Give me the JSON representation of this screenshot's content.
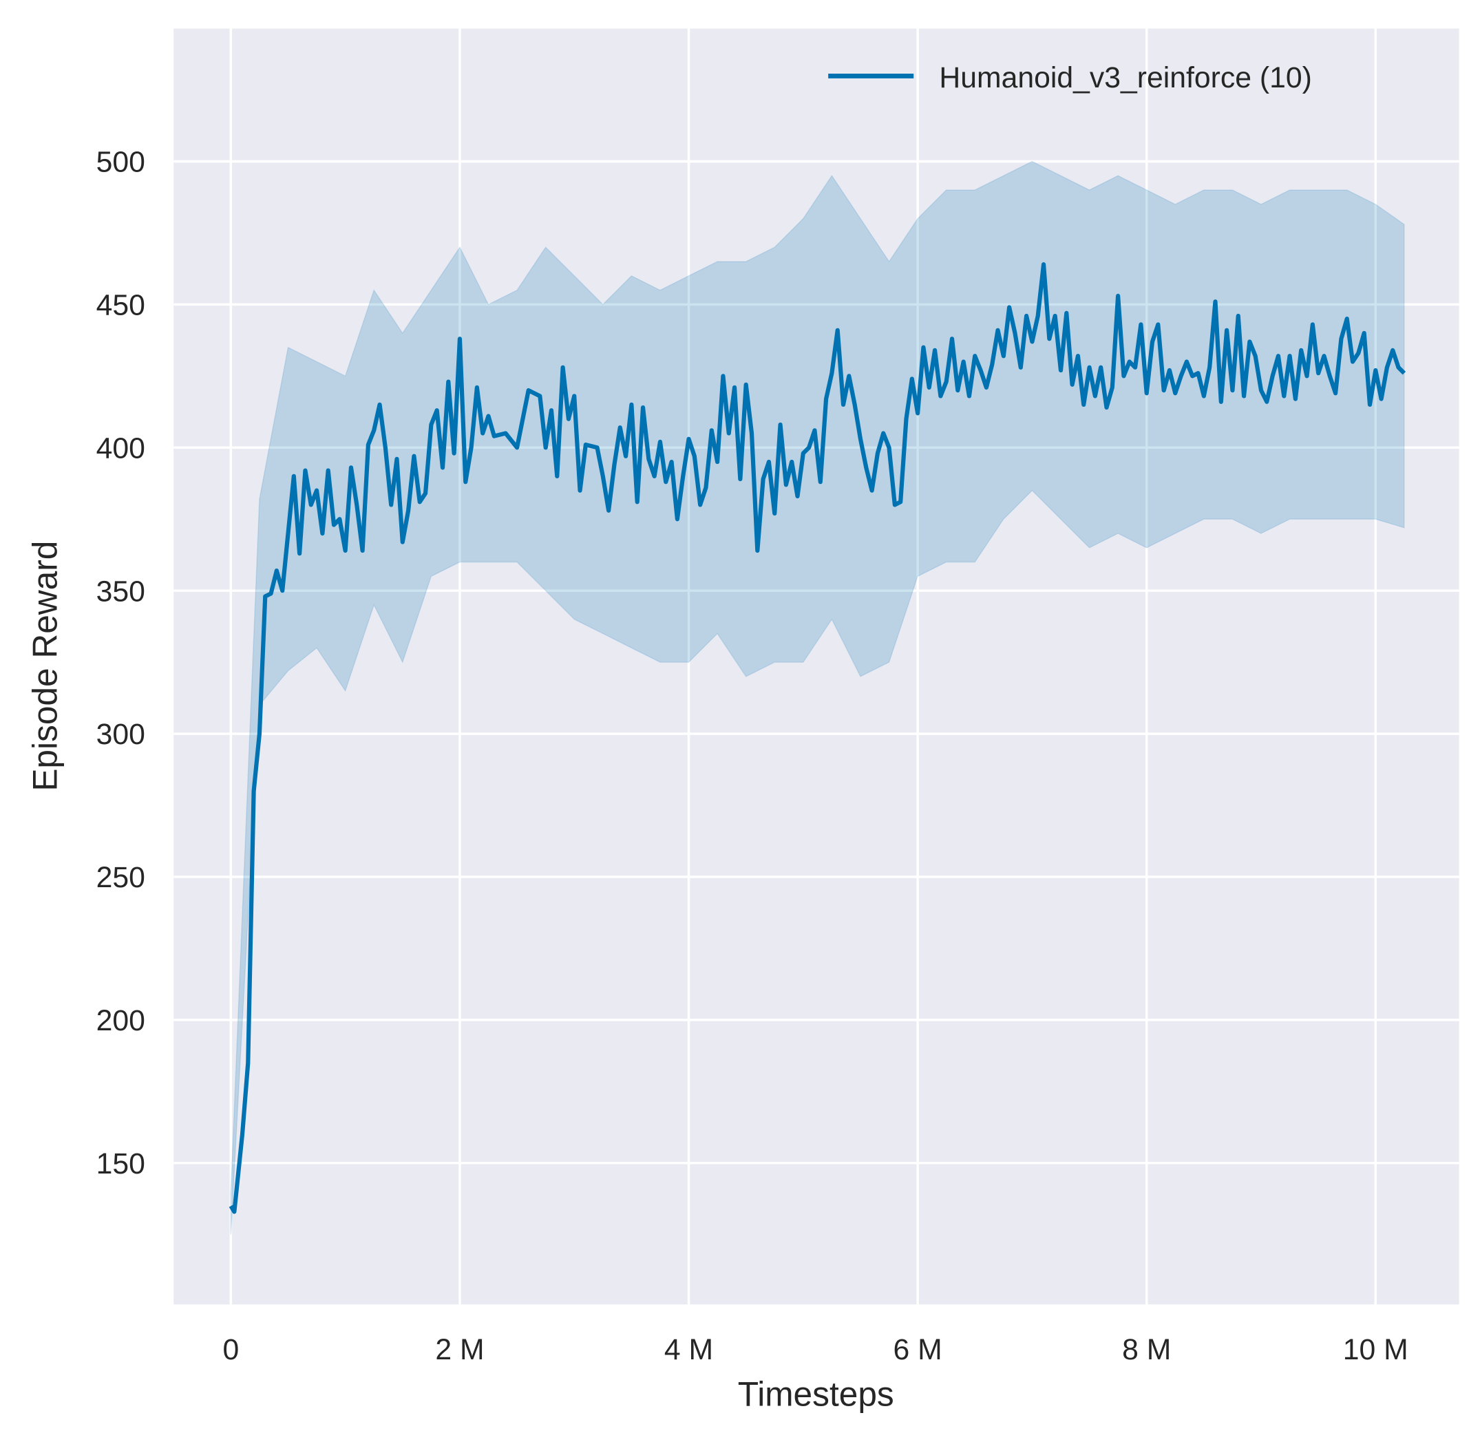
{
  "chart_data": {
    "type": "line",
    "xlabel": "Timesteps",
    "ylabel": "Episode Reward",
    "xlim": [
      -0.5,
      10.73
    ],
    "ylim": [
      100.6,
      546.4
    ],
    "x_unit": "M",
    "xticks": [
      0,
      2,
      4,
      6,
      8,
      10
    ],
    "xtick_labels": [
      "0",
      "2 M",
      "4 M",
      "6 M",
      "8 M",
      "10 M"
    ],
    "yticks": [
      150,
      200,
      250,
      300,
      350,
      400,
      450,
      500
    ],
    "ytick_labels": [
      "150",
      "200",
      "250",
      "300",
      "350",
      "400",
      "450",
      "500"
    ],
    "grid": true,
    "legend_position": "top-right",
    "background_color": "#EAEAF2",
    "series": [
      {
        "name": "Humanoid_v3_reinforce (10)",
        "color": "#0072B2",
        "mean": [
          [
            0,
            135
          ],
          [
            0.03,
            133
          ],
          [
            0.1,
            160
          ],
          [
            0.15,
            185
          ],
          [
            0.2,
            280
          ],
          [
            0.25,
            300
          ],
          [
            0.3,
            348
          ],
          [
            0.35,
            349
          ],
          [
            0.4,
            357
          ],
          [
            0.45,
            350
          ],
          [
            0.5,
            370
          ],
          [
            0.55,
            390
          ],
          [
            0.6,
            363
          ],
          [
            0.65,
            392
          ],
          [
            0.7,
            380
          ],
          [
            0.75,
            385
          ],
          [
            0.8,
            370
          ],
          [
            0.85,
            392
          ],
          [
            0.9,
            373
          ],
          [
            0.95,
            375
          ],
          [
            1.0,
            364
          ],
          [
            1.05,
            393
          ],
          [
            1.1,
            380
          ],
          [
            1.15,
            364
          ],
          [
            1.2,
            401
          ],
          [
            1.25,
            406
          ],
          [
            1.3,
            415
          ],
          [
            1.35,
            400
          ],
          [
            1.4,
            380
          ],
          [
            1.45,
            396
          ],
          [
            1.5,
            367
          ],
          [
            1.55,
            378
          ],
          [
            1.6,
            397
          ],
          [
            1.65,
            381
          ],
          [
            1.7,
            384
          ],
          [
            1.75,
            408
          ],
          [
            1.8,
            413
          ],
          [
            1.85,
            393
          ],
          [
            1.9,
            423
          ],
          [
            1.95,
            398
          ],
          [
            2.0,
            438
          ],
          [
            2.05,
            388
          ],
          [
            2.1,
            400
          ],
          [
            2.15,
            421
          ],
          [
            2.2,
            405
          ],
          [
            2.25,
            411
          ],
          [
            2.3,
            404
          ],
          [
            2.4,
            405
          ],
          [
            2.5,
            400
          ],
          [
            2.6,
            420
          ],
          [
            2.7,
            418
          ],
          [
            2.75,
            400
          ],
          [
            2.8,
            413
          ],
          [
            2.85,
            390
          ],
          [
            2.9,
            428
          ],
          [
            2.95,
            410
          ],
          [
            3.0,
            418
          ],
          [
            3.05,
            385
          ],
          [
            3.1,
            401
          ],
          [
            3.2,
            400
          ],
          [
            3.25,
            390
          ],
          [
            3.3,
            378
          ],
          [
            3.35,
            394
          ],
          [
            3.4,
            407
          ],
          [
            3.45,
            397
          ],
          [
            3.5,
            415
          ],
          [
            3.55,
            381
          ],
          [
            3.6,
            414
          ],
          [
            3.65,
            396
          ],
          [
            3.7,
            390
          ],
          [
            3.75,
            402
          ],
          [
            3.8,
            388
          ],
          [
            3.85,
            395
          ],
          [
            3.9,
            375
          ],
          [
            3.95,
            390
          ],
          [
            4.0,
            403
          ],
          [
            4.05,
            397
          ],
          [
            4.1,
            380
          ],
          [
            4.15,
            386
          ],
          [
            4.2,
            406
          ],
          [
            4.25,
            395
          ],
          [
            4.3,
            425
          ],
          [
            4.35,
            405
          ],
          [
            4.4,
            421
          ],
          [
            4.45,
            389
          ],
          [
            4.5,
            422
          ],
          [
            4.55,
            405
          ],
          [
            4.6,
            364
          ],
          [
            4.65,
            389
          ],
          [
            4.7,
            395
          ],
          [
            4.75,
            377
          ],
          [
            4.8,
            408
          ],
          [
            4.85,
            387
          ],
          [
            4.9,
            395
          ],
          [
            4.95,
            383
          ],
          [
            5.0,
            398
          ],
          [
            5.05,
            400
          ],
          [
            5.1,
            406
          ],
          [
            5.15,
            388
          ],
          [
            5.2,
            417
          ],
          [
            5.25,
            426
          ],
          [
            5.3,
            441
          ],
          [
            5.35,
            415
          ],
          [
            5.4,
            425
          ],
          [
            5.45,
            415
          ],
          [
            5.5,
            403
          ],
          [
            5.55,
            393
          ],
          [
            5.6,
            385
          ],
          [
            5.65,
            398
          ],
          [
            5.7,
            405
          ],
          [
            5.75,
            400
          ],
          [
            5.8,
            380
          ],
          [
            5.85,
            381
          ],
          [
            5.9,
            410
          ],
          [
            5.95,
            424
          ],
          [
            6.0,
            412
          ],
          [
            6.05,
            435
          ],
          [
            6.1,
            421
          ],
          [
            6.15,
            434
          ],
          [
            6.2,
            418
          ],
          [
            6.25,
            423
          ],
          [
            6.3,
            438
          ],
          [
            6.35,
            420
          ],
          [
            6.4,
            430
          ],
          [
            6.45,
            418
          ],
          [
            6.5,
            432
          ],
          [
            6.55,
            427
          ],
          [
            6.6,
            421
          ],
          [
            6.65,
            429
          ],
          [
            6.7,
            441
          ],
          [
            6.75,
            432
          ],
          [
            6.8,
            449
          ],
          [
            6.85,
            440
          ],
          [
            6.9,
            428
          ],
          [
            6.95,
            446
          ],
          [
            7.0,
            437
          ],
          [
            7.05,
            446
          ],
          [
            7.1,
            464
          ],
          [
            7.15,
            438
          ],
          [
            7.2,
            446
          ],
          [
            7.25,
            427
          ],
          [
            7.3,
            447
          ],
          [
            7.35,
            422
          ],
          [
            7.4,
            432
          ],
          [
            7.45,
            415
          ],
          [
            7.5,
            428
          ],
          [
            7.55,
            418
          ],
          [
            7.6,
            428
          ],
          [
            7.65,
            414
          ],
          [
            7.7,
            421
          ],
          [
            7.75,
            453
          ],
          [
            7.8,
            425
          ],
          [
            7.85,
            430
          ],
          [
            7.9,
            428
          ],
          [
            7.95,
            443
          ],
          [
            8.0,
            419
          ],
          [
            8.05,
            437
          ],
          [
            8.1,
            443
          ],
          [
            8.15,
            420
          ],
          [
            8.2,
            427
          ],
          [
            8.25,
            419
          ],
          [
            8.3,
            425
          ],
          [
            8.35,
            430
          ],
          [
            8.4,
            425
          ],
          [
            8.45,
            426
          ],
          [
            8.5,
            418
          ],
          [
            8.55,
            428
          ],
          [
            8.6,
            451
          ],
          [
            8.65,
            416
          ],
          [
            8.7,
            441
          ],
          [
            8.75,
            420
          ],
          [
            8.8,
            446
          ],
          [
            8.85,
            418
          ],
          [
            8.9,
            437
          ],
          [
            8.95,
            432
          ],
          [
            9.0,
            420
          ],
          [
            9.05,
            416
          ],
          [
            9.1,
            425
          ],
          [
            9.15,
            432
          ],
          [
            9.2,
            418
          ],
          [
            9.25,
            432
          ],
          [
            9.3,
            417
          ],
          [
            9.35,
            434
          ],
          [
            9.4,
            425
          ],
          [
            9.45,
            443
          ],
          [
            9.5,
            426
          ],
          [
            9.55,
            432
          ],
          [
            9.6,
            425
          ],
          [
            9.65,
            419
          ],
          [
            9.7,
            438
          ],
          [
            9.75,
            445
          ],
          [
            9.8,
            430
          ],
          [
            9.85,
            433
          ],
          [
            9.9,
            440
          ],
          [
            9.95,
            415
          ],
          [
            10.0,
            427
          ],
          [
            10.05,
            417
          ],
          [
            10.1,
            428
          ],
          [
            10.15,
            434
          ],
          [
            10.2,
            428
          ],
          [
            10.25,
            426
          ]
        ],
        "band_x": [
          0,
          0.25,
          0.5,
          0.75,
          1.0,
          1.25,
          1.5,
          1.75,
          2.0,
          2.25,
          2.5,
          2.75,
          3.0,
          3.25,
          3.5,
          3.75,
          4.0,
          4.25,
          4.5,
          4.75,
          5.0,
          5.25,
          5.5,
          5.75,
          6.0,
          6.25,
          6.5,
          6.75,
          7.0,
          7.25,
          7.5,
          7.75,
          8.0,
          8.25,
          8.5,
          8.75,
          9.0,
          9.25,
          9.5,
          9.75,
          10.0,
          10.25
        ],
        "band_lower": [
          125,
          310,
          322,
          330,
          315,
          345,
          325,
          355,
          360,
          360,
          360,
          350,
          340,
          335,
          330,
          325,
          325,
          335,
          320,
          325,
          325,
          340,
          320,
          325,
          355,
          360,
          360,
          375,
          385,
          375,
          365,
          370,
          365,
          370,
          375,
          375,
          370,
          375,
          375,
          375,
          375,
          372
        ],
        "band_upper": [
          140,
          382,
          435,
          430,
          425,
          455,
          440,
          455,
          470,
          450,
          455,
          470,
          460,
          450,
          460,
          455,
          460,
          465,
          465,
          470,
          480,
          495,
          480,
          465,
          480,
          490,
          490,
          495,
          500,
          495,
          490,
          495,
          490,
          485,
          490,
          490,
          485,
          490,
          490,
          490,
          485,
          478
        ]
      }
    ]
  }
}
